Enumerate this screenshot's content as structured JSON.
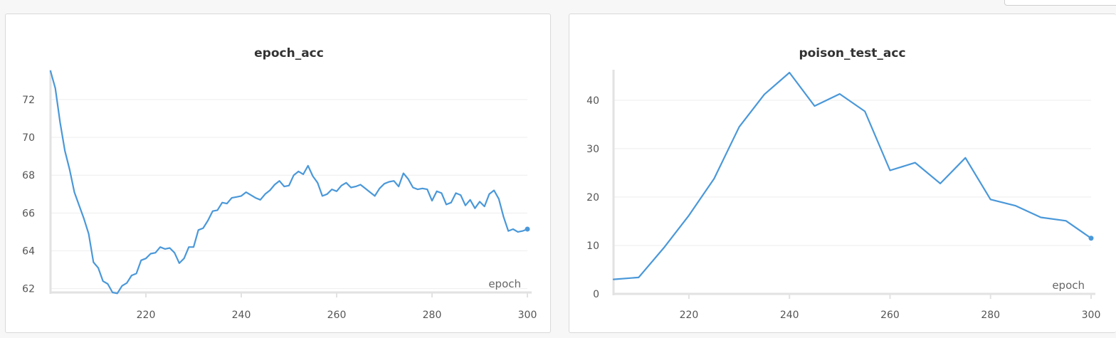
{
  "colors": {
    "line": "#4a98d9",
    "axis": "#e2e2e2",
    "grid": "#eeeeee",
    "text": "#555555"
  },
  "chart_data": [
    {
      "type": "line",
      "title": "epoch_acc",
      "xlabel": "epoch",
      "ylabel": "",
      "xlim": [
        200,
        300
      ],
      "ylim": [
        61.8,
        73.5
      ],
      "xticks": [
        220,
        240,
        260,
        280,
        300
      ],
      "xtick_labels": [
        "220",
        "240",
        "260",
        "280",
        "300"
      ],
      "yticks": [
        62,
        64,
        66,
        68,
        70,
        72
      ],
      "ytick_labels": [
        "62",
        "64",
        "66",
        "68",
        "70",
        "72"
      ],
      "grid": true,
      "series": [
        {
          "x": [
            200,
            201,
            202,
            203,
            204,
            205,
            206,
            207,
            208,
            209,
            210,
            211,
            212,
            213,
            214,
            215,
            216,
            217,
            218,
            219,
            220,
            221,
            222,
            223,
            224,
            225,
            226,
            227,
            228,
            229,
            230,
            231,
            232,
            233,
            234,
            235,
            236,
            237,
            238,
            239,
            240,
            241,
            242,
            243,
            244,
            245,
            246,
            247,
            248,
            249,
            250,
            251,
            252,
            253,
            254,
            255,
            256,
            257,
            258,
            259,
            260,
            261,
            262,
            263,
            264,
            265,
            266,
            267,
            268,
            269,
            270,
            271,
            272,
            273,
            274,
            275,
            276,
            277,
            278,
            279,
            280,
            281,
            282,
            283,
            284,
            285,
            286,
            287,
            288,
            289,
            290,
            291,
            292,
            293,
            294,
            295,
            296,
            297,
            298,
            299,
            300
          ],
          "values": [
            73.5,
            72.6,
            70.8,
            69.3,
            68.3,
            67.1,
            66.4,
            65.7,
            64.9,
            63.4,
            63.1,
            62.4,
            62.25,
            61.8,
            61.75,
            62.15,
            62.3,
            62.7,
            62.8,
            63.5,
            63.6,
            63.85,
            63.9,
            64.2,
            64.1,
            64.15,
            63.9,
            63.35,
            63.6,
            64.2,
            64.2,
            65.1,
            65.2,
            65.6,
            66.1,
            66.15,
            66.55,
            66.5,
            66.8,
            66.85,
            66.9,
            67.1,
            66.95,
            66.8,
            66.7,
            67.0,
            67.2,
            67.5,
            67.7,
            67.4,
            67.45,
            68.0,
            68.2,
            68.05,
            68.5,
            67.95,
            67.6,
            66.9,
            67.0,
            67.25,
            67.15,
            67.45,
            67.6,
            67.35,
            67.4,
            67.5,
            67.3,
            67.1,
            66.9,
            67.3,
            67.55,
            67.65,
            67.7,
            67.4,
            68.1,
            67.8,
            67.35,
            67.25,
            67.3,
            67.25,
            66.65,
            67.15,
            67.05,
            66.45,
            66.55,
            67.05,
            66.95,
            66.4,
            66.7,
            66.25,
            66.6,
            66.35,
            67.0,
            67.2,
            66.75,
            65.8,
            65.05,
            65.15,
            65.0,
            65.05,
            65.15
          ]
        }
      ]
    },
    {
      "type": "line",
      "title": "poison_test_acc",
      "xlabel": "epoch",
      "ylabel": "",
      "xlim": [
        205,
        300
      ],
      "ylim": [
        0,
        46
      ],
      "xticks": [
        220,
        240,
        260,
        280,
        300
      ],
      "xtick_labels": [
        "220",
        "240",
        "260",
        "280",
        "300"
      ],
      "yticks": [
        0,
        10,
        20,
        30,
        40
      ],
      "ytick_labels": [
        "0",
        "10",
        "20",
        "30",
        "40"
      ],
      "grid": true,
      "series": [
        {
          "x": [
            205,
            210,
            215,
            220,
            225,
            230,
            235,
            240,
            245,
            250,
            255,
            260,
            265,
            270,
            275,
            280,
            285,
            290,
            295,
            300
          ],
          "values": [
            3.0,
            3.4,
            9.5,
            16.2,
            23.8,
            34.5,
            41.2,
            45.7,
            38.8,
            41.3,
            37.7,
            25.5,
            27.1,
            22.8,
            28.1,
            19.5,
            18.2,
            15.8,
            15.1,
            11.5
          ]
        }
      ]
    }
  ]
}
